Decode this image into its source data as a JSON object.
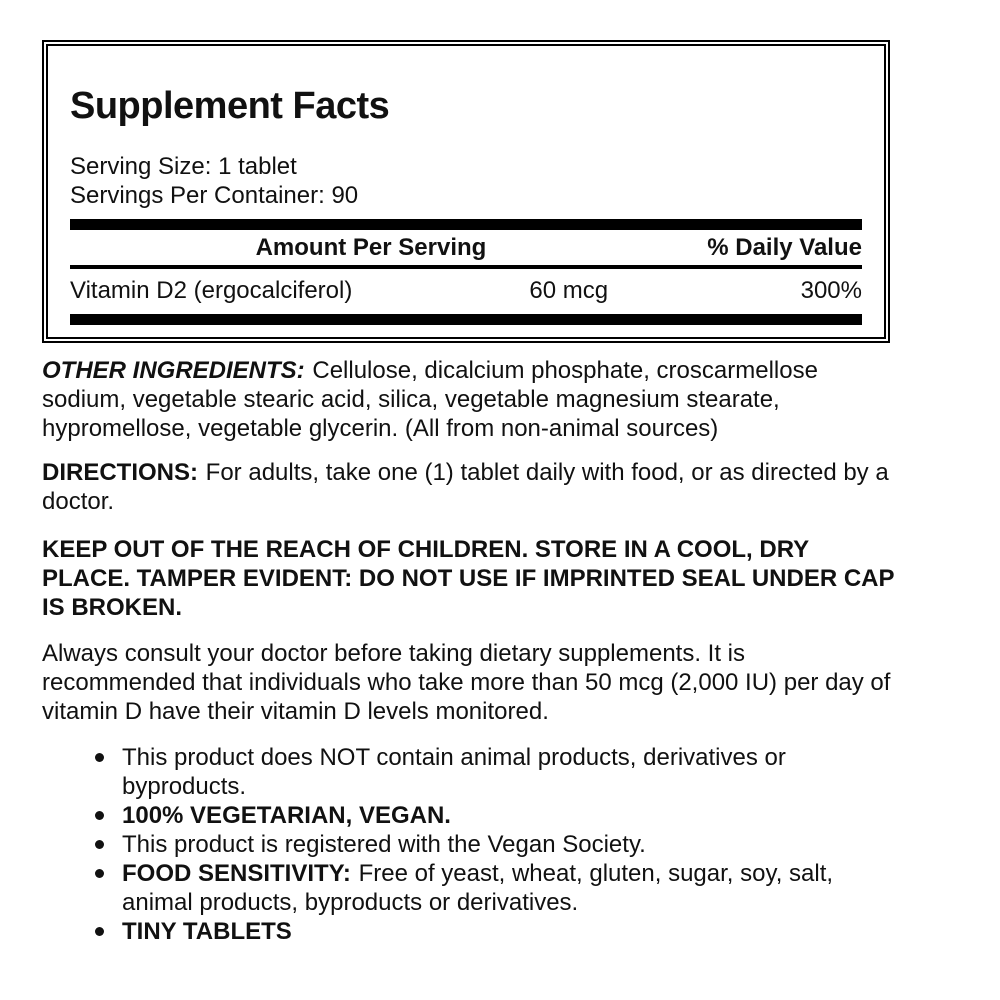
{
  "page": {
    "background": "#ffffff",
    "text_color": "#111111",
    "rule_color": "#000000"
  },
  "facts_panel": {
    "title": "Supplement Facts",
    "serving_size": "Serving Size: 1 tablet",
    "servings_per_container": "Servings Per Container: 90",
    "columns": {
      "amount_per_serving": "Amount Per Serving",
      "daily_value": "% Daily Value"
    },
    "rows": [
      {
        "name": "Vitamin D2 (ergocalciferol)",
        "amount": "60 mcg",
        "daily_value": "300%"
      }
    ]
  },
  "sections": {
    "other_ingredients": {
      "label": "OTHER INGREDIENTS:",
      "text": "Cellulose, dicalcium phosphate, croscarmellose sodium, vegetable stearic acid, silica, vegetable magnesium stearate, hypromellose, vegetable glycerin. (All from non-animal sources)"
    },
    "directions": {
      "label": "DIRECTIONS:",
      "text": "For adults, take one (1) tablet daily with food, or as directed by a doctor."
    },
    "warning": {
      "text": "KEEP OUT OF THE REACH OF CHILDREN. STORE IN A COOL, DRY PLACE. TAMPER EVIDENT: DO NOT USE IF IMPRINTED SEAL UNDER CAP IS BROKEN."
    },
    "advisory": {
      "text": "Always consult your doctor before taking dietary supplements. It is recommended that individuals who take more than 50 mcg (2,000 IU) per day of vitamin D have their vitamin D levels monitored."
    }
  },
  "bullets": [
    {
      "text": "This product does NOT contain animal products, derivatives or byproducts."
    },
    {
      "text": "100% VEGETARIAN, VEGAN."
    },
    {
      "text": "This product is registered with the Vegan Society."
    },
    {
      "label": "FOOD SENSITIVITY:",
      "text": "Free of yeast, wheat, gluten, sugar, soy, salt, animal products, byproducts or derivatives."
    },
    {
      "text": "TINY TABLETS"
    }
  ]
}
